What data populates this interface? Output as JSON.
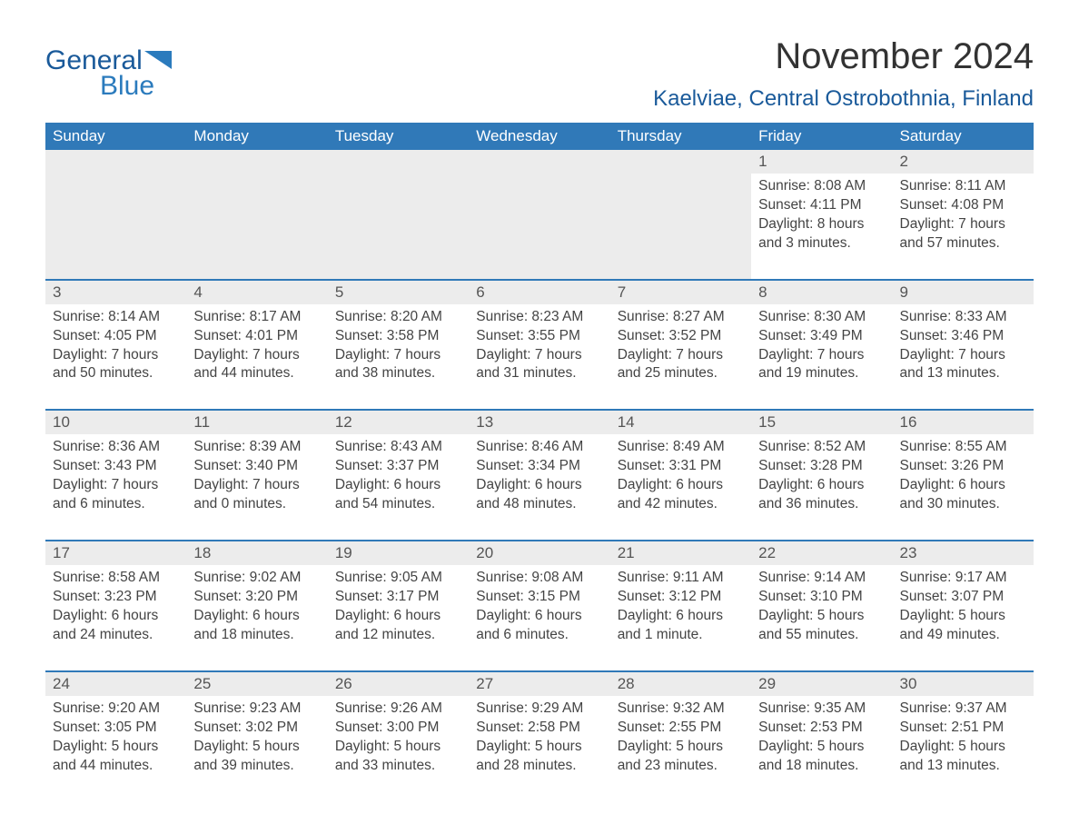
{
  "logo": {
    "text_general": "General",
    "text_blue": "Blue",
    "triangle_color": "#2b7bbd"
  },
  "title": "November 2024",
  "location": "Kaelviae, Central Ostrobothnia, Finland",
  "colors": {
    "header_bg": "#3079b8",
    "header_text": "#ffffff",
    "daynum_bg": "#ececec",
    "daynum_border": "#3079b8",
    "body_text": "#444444",
    "logo_general": "#1a5a9a",
    "logo_blue": "#2b7bbd"
  },
  "typography": {
    "title_fontsize": 40,
    "location_fontsize": 24,
    "dow_fontsize": 17,
    "cell_fontsize": 15.5
  },
  "days_of_week": [
    "Sunday",
    "Monday",
    "Tuesday",
    "Wednesday",
    "Thursday",
    "Friday",
    "Saturday"
  ],
  "weeks": [
    {
      "days": [
        {
          "blank": true
        },
        {
          "blank": true
        },
        {
          "blank": true
        },
        {
          "blank": true
        },
        {
          "blank": true
        },
        {
          "num": "1",
          "sunrise": "Sunrise: 8:08 AM",
          "sunset": "Sunset: 4:11 PM",
          "daylight1": "Daylight: 8 hours",
          "daylight2": "and 3 minutes."
        },
        {
          "num": "2",
          "sunrise": "Sunrise: 8:11 AM",
          "sunset": "Sunset: 4:08 PM",
          "daylight1": "Daylight: 7 hours",
          "daylight2": "and 57 minutes."
        }
      ]
    },
    {
      "days": [
        {
          "num": "3",
          "sunrise": "Sunrise: 8:14 AM",
          "sunset": "Sunset: 4:05 PM",
          "daylight1": "Daylight: 7 hours",
          "daylight2": "and 50 minutes."
        },
        {
          "num": "4",
          "sunrise": "Sunrise: 8:17 AM",
          "sunset": "Sunset: 4:01 PM",
          "daylight1": "Daylight: 7 hours",
          "daylight2": "and 44 minutes."
        },
        {
          "num": "5",
          "sunrise": "Sunrise: 8:20 AM",
          "sunset": "Sunset: 3:58 PM",
          "daylight1": "Daylight: 7 hours",
          "daylight2": "and 38 minutes."
        },
        {
          "num": "6",
          "sunrise": "Sunrise: 8:23 AM",
          "sunset": "Sunset: 3:55 PM",
          "daylight1": "Daylight: 7 hours",
          "daylight2": "and 31 minutes."
        },
        {
          "num": "7",
          "sunrise": "Sunrise: 8:27 AM",
          "sunset": "Sunset: 3:52 PM",
          "daylight1": "Daylight: 7 hours",
          "daylight2": "and 25 minutes."
        },
        {
          "num": "8",
          "sunrise": "Sunrise: 8:30 AM",
          "sunset": "Sunset: 3:49 PM",
          "daylight1": "Daylight: 7 hours",
          "daylight2": "and 19 minutes."
        },
        {
          "num": "9",
          "sunrise": "Sunrise: 8:33 AM",
          "sunset": "Sunset: 3:46 PM",
          "daylight1": "Daylight: 7 hours",
          "daylight2": "and 13 minutes."
        }
      ]
    },
    {
      "days": [
        {
          "num": "10",
          "sunrise": "Sunrise: 8:36 AM",
          "sunset": "Sunset: 3:43 PM",
          "daylight1": "Daylight: 7 hours",
          "daylight2": "and 6 minutes."
        },
        {
          "num": "11",
          "sunrise": "Sunrise: 8:39 AM",
          "sunset": "Sunset: 3:40 PM",
          "daylight1": "Daylight: 7 hours",
          "daylight2": "and 0 minutes."
        },
        {
          "num": "12",
          "sunrise": "Sunrise: 8:43 AM",
          "sunset": "Sunset: 3:37 PM",
          "daylight1": "Daylight: 6 hours",
          "daylight2": "and 54 minutes."
        },
        {
          "num": "13",
          "sunrise": "Sunrise: 8:46 AM",
          "sunset": "Sunset: 3:34 PM",
          "daylight1": "Daylight: 6 hours",
          "daylight2": "and 48 minutes."
        },
        {
          "num": "14",
          "sunrise": "Sunrise: 8:49 AM",
          "sunset": "Sunset: 3:31 PM",
          "daylight1": "Daylight: 6 hours",
          "daylight2": "and 42 minutes."
        },
        {
          "num": "15",
          "sunrise": "Sunrise: 8:52 AM",
          "sunset": "Sunset: 3:28 PM",
          "daylight1": "Daylight: 6 hours",
          "daylight2": "and 36 minutes."
        },
        {
          "num": "16",
          "sunrise": "Sunrise: 8:55 AM",
          "sunset": "Sunset: 3:26 PM",
          "daylight1": "Daylight: 6 hours",
          "daylight2": "and 30 minutes."
        }
      ]
    },
    {
      "days": [
        {
          "num": "17",
          "sunrise": "Sunrise: 8:58 AM",
          "sunset": "Sunset: 3:23 PM",
          "daylight1": "Daylight: 6 hours",
          "daylight2": "and 24 minutes."
        },
        {
          "num": "18",
          "sunrise": "Sunrise: 9:02 AM",
          "sunset": "Sunset: 3:20 PM",
          "daylight1": "Daylight: 6 hours",
          "daylight2": "and 18 minutes."
        },
        {
          "num": "19",
          "sunrise": "Sunrise: 9:05 AM",
          "sunset": "Sunset: 3:17 PM",
          "daylight1": "Daylight: 6 hours",
          "daylight2": "and 12 minutes."
        },
        {
          "num": "20",
          "sunrise": "Sunrise: 9:08 AM",
          "sunset": "Sunset: 3:15 PM",
          "daylight1": "Daylight: 6 hours",
          "daylight2": "and 6 minutes."
        },
        {
          "num": "21",
          "sunrise": "Sunrise: 9:11 AM",
          "sunset": "Sunset: 3:12 PM",
          "daylight1": "Daylight: 6 hours",
          "daylight2": "and 1 minute."
        },
        {
          "num": "22",
          "sunrise": "Sunrise: 9:14 AM",
          "sunset": "Sunset: 3:10 PM",
          "daylight1": "Daylight: 5 hours",
          "daylight2": "and 55 minutes."
        },
        {
          "num": "23",
          "sunrise": "Sunrise: 9:17 AM",
          "sunset": "Sunset: 3:07 PM",
          "daylight1": "Daylight: 5 hours",
          "daylight2": "and 49 minutes."
        }
      ]
    },
    {
      "days": [
        {
          "num": "24",
          "sunrise": "Sunrise: 9:20 AM",
          "sunset": "Sunset: 3:05 PM",
          "daylight1": "Daylight: 5 hours",
          "daylight2": "and 44 minutes."
        },
        {
          "num": "25",
          "sunrise": "Sunrise: 9:23 AM",
          "sunset": "Sunset: 3:02 PM",
          "daylight1": "Daylight: 5 hours",
          "daylight2": "and 39 minutes."
        },
        {
          "num": "26",
          "sunrise": "Sunrise: 9:26 AM",
          "sunset": "Sunset: 3:00 PM",
          "daylight1": "Daylight: 5 hours",
          "daylight2": "and 33 minutes."
        },
        {
          "num": "27",
          "sunrise": "Sunrise: 9:29 AM",
          "sunset": "Sunset: 2:58 PM",
          "daylight1": "Daylight: 5 hours",
          "daylight2": "and 28 minutes."
        },
        {
          "num": "28",
          "sunrise": "Sunrise: 9:32 AM",
          "sunset": "Sunset: 2:55 PM",
          "daylight1": "Daylight: 5 hours",
          "daylight2": "and 23 minutes."
        },
        {
          "num": "29",
          "sunrise": "Sunrise: 9:35 AM",
          "sunset": "Sunset: 2:53 PM",
          "daylight1": "Daylight: 5 hours",
          "daylight2": "and 18 minutes."
        },
        {
          "num": "30",
          "sunrise": "Sunrise: 9:37 AM",
          "sunset": "Sunset: 2:51 PM",
          "daylight1": "Daylight: 5 hours",
          "daylight2": "and 13 minutes."
        }
      ]
    }
  ]
}
